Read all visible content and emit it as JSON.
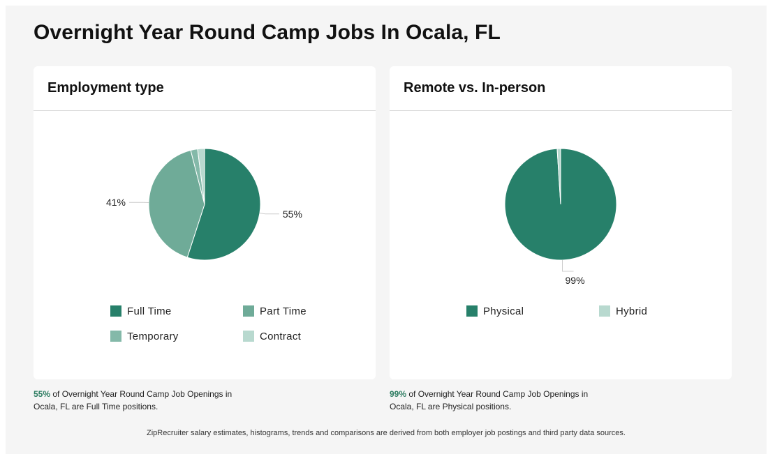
{
  "page": {
    "title": "Overnight Year Round Camp Jobs In Ocala, FL",
    "footer": "ZipRecruiter salary estimates, histograms, trends and comparisons are derived from both employer job postings and third party data sources."
  },
  "employment": {
    "title": "Employment type",
    "caption_pct": "55%",
    "caption_text": " of Overnight Year Round Camp Job Openings in Ocala, FL are Full Time positions.",
    "legend": [
      {
        "label": "Full Time",
        "color": "#27806a"
      },
      {
        "label": "Part Time",
        "color": "#6fab98"
      },
      {
        "label": "Temporary",
        "color": "#84b9a9"
      },
      {
        "label": "Contract",
        "color": "#b8d9cf"
      }
    ]
  },
  "remote": {
    "title": "Remote vs. In-person",
    "caption_pct": "99%",
    "caption_text": " of Overnight Year Round Camp Job Openings in Ocala, FL are Physical positions.",
    "legend": [
      {
        "label": "Physical",
        "color": "#27806a"
      },
      {
        "label": "Hybrid",
        "color": "#b8d9cf"
      }
    ]
  },
  "chart_data": [
    {
      "type": "pie",
      "title": "Employment type",
      "categories": [
        "Full Time",
        "Part Time",
        "Temporary",
        "Contract"
      ],
      "values": [
        55,
        41,
        2,
        2
      ],
      "colors": [
        "#27806a",
        "#6fab98",
        "#84b9a9",
        "#b8d9cf"
      ],
      "data_labels": [
        "55%",
        "41%",
        "",
        ""
      ],
      "legend_position": "bottom"
    },
    {
      "type": "pie",
      "title": "Remote vs. In-person",
      "categories": [
        "Physical",
        "Hybrid"
      ],
      "values": [
        99,
        1
      ],
      "colors": [
        "#27806a",
        "#b8d9cf"
      ],
      "data_labels": [
        "99%",
        ""
      ],
      "legend_position": "bottom"
    }
  ]
}
